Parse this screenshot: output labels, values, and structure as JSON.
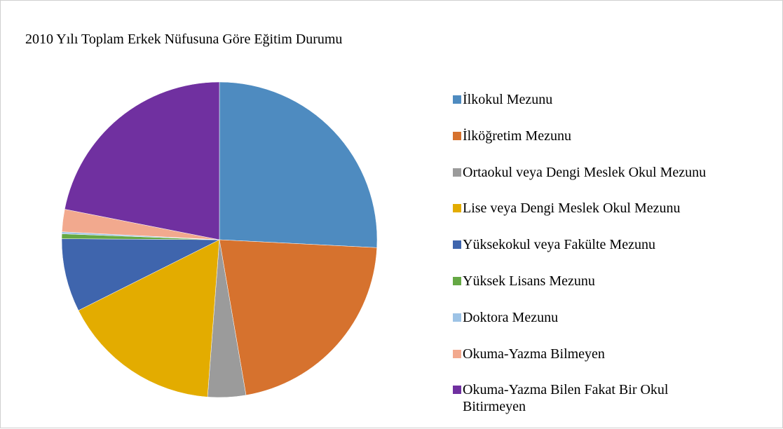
{
  "chart_data": {
    "type": "pie",
    "title": "2010 Yılı Toplam Erkek Nüfusuna Göre Eğitim Durumu",
    "categories": [
      "İlkokul Mezunu",
      "İlköğretim Mezunu",
      "Ortaokul veya Dengi Meslek Okul Mezunu",
      "Lise veya Dengi Meslek Okul Mezunu",
      "Yüksekokul veya Fakülte Mezunu",
      "Yüksek Lisans Mezunu",
      "Doktora Mezunu",
      "Okuma-Yazma Bilmeyen",
      "Okuma-Yazma Bilen Fakat Bir Okul Bitirmeyen"
    ],
    "values": [
      25.8,
      21.5,
      3.9,
      16.4,
      7.5,
      0.5,
      0.2,
      2.3,
      21.9
    ],
    "colors": [
      "#4e8bc0",
      "#d6722e",
      "#9b9b9b",
      "#e3ac00",
      "#3f65ad",
      "#65a844",
      "#9dc3e6",
      "#f2a98e",
      "#7030a0"
    ],
    "legend": "right"
  }
}
